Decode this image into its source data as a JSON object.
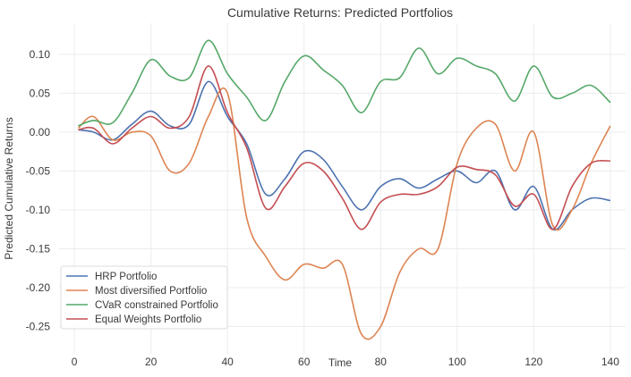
{
  "chart_data": {
    "type": "line",
    "title": "Cumulative Returns: Predicted Portfolios",
    "xlabel": "Time",
    "ylabel": "Predicted Cumulative Returns",
    "xlim": [
      -4,
      144
    ],
    "ylim": [
      -0.285,
      0.14
    ],
    "xticks": [
      0,
      20,
      40,
      60,
      80,
      100,
      120,
      140
    ],
    "yticks": [
      0.1,
      0.05,
      0.0,
      -0.05,
      -0.1,
      -0.15,
      -0.2,
      -0.25
    ],
    "grid": true,
    "legend_position": "lower-left",
    "x": [
      1,
      5,
      10,
      15,
      20,
      25,
      30,
      35,
      40,
      45,
      50,
      55,
      60,
      65,
      70,
      75,
      80,
      85,
      90,
      95,
      100,
      105,
      110,
      115,
      120,
      125,
      130,
      135,
      140
    ],
    "series": [
      {
        "name": "HRP Portfolio",
        "color": "#4c72b0",
        "values": [
          0.003,
          0.0,
          -0.01,
          0.01,
          0.027,
          0.008,
          0.01,
          0.065,
          0.02,
          -0.015,
          -0.08,
          -0.06,
          -0.025,
          -0.035,
          -0.07,
          -0.1,
          -0.07,
          -0.06,
          -0.072,
          -0.06,
          -0.05,
          -0.065,
          -0.05,
          -0.1,
          -0.07,
          -0.125,
          -0.1,
          -0.085,
          -0.088
        ]
      },
      {
        "name": "Most diversified Portfolio",
        "color": "#dd8452",
        "values": [
          0.005,
          0.02,
          -0.01,
          0.0,
          -0.005,
          -0.05,
          -0.04,
          0.02,
          0.05,
          -0.11,
          -0.16,
          -0.19,
          -0.17,
          -0.175,
          -0.17,
          -0.26,
          -0.25,
          -0.18,
          -0.15,
          -0.15,
          -0.04,
          0.005,
          0.01,
          -0.05,
          0.0,
          -0.12,
          -0.1,
          -0.04,
          0.008
        ]
      },
      {
        "name": "CVaR constrained Portfolio",
        "color": "#55a868",
        "values": [
          0.008,
          0.015,
          0.012,
          0.05,
          0.093,
          0.072,
          0.07,
          0.118,
          0.075,
          0.045,
          0.015,
          0.065,
          0.098,
          0.08,
          0.06,
          0.025,
          0.065,
          0.07,
          0.108,
          0.075,
          0.095,
          0.085,
          0.075,
          0.04,
          0.085,
          0.045,
          0.05,
          0.06,
          0.038
        ]
      },
      {
        "name": "Equal Weights Portfolio",
        "color": "#c44e52",
        "values": [
          0.003,
          0.005,
          -0.015,
          0.005,
          0.02,
          0.005,
          0.02,
          0.085,
          0.025,
          -0.02,
          -0.098,
          -0.07,
          -0.04,
          -0.05,
          -0.085,
          -0.125,
          -0.09,
          -0.08,
          -0.08,
          -0.07,
          -0.045,
          -0.048,
          -0.055,
          -0.095,
          -0.08,
          -0.125,
          -0.07,
          -0.04,
          -0.037
        ]
      }
    ]
  }
}
